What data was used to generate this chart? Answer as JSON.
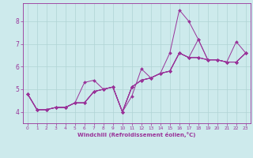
{
  "title": "",
  "xlabel": "Windchill (Refroidissement éolien,°C)",
  "ylabel": "",
  "bg_color": "#cdeaec",
  "line_color": "#993399",
  "grid_color": "#b0d4d4",
  "xlim": [
    -0.5,
    23.5
  ],
  "ylim": [
    3.5,
    8.8
  ],
  "yticks": [
    4,
    5,
    6,
    7,
    8
  ],
  "xticks": [
    0,
    1,
    2,
    3,
    4,
    5,
    6,
    7,
    8,
    9,
    10,
    11,
    12,
    13,
    14,
    15,
    16,
    17,
    18,
    19,
    20,
    21,
    22,
    23
  ],
  "series": [
    [
      4.8,
      4.1,
      4.1,
      4.2,
      4.2,
      4.4,
      5.3,
      5.4,
      5.0,
      5.1,
      4.0,
      4.7,
      5.9,
      5.5,
      5.7,
      6.6,
      8.5,
      8.0,
      7.2,
      6.3,
      6.3,
      6.2,
      7.1,
      6.6
    ],
    [
      4.8,
      4.1,
      4.1,
      4.2,
      4.2,
      4.4,
      4.4,
      4.9,
      5.0,
      5.1,
      4.0,
      5.1,
      5.4,
      5.5,
      5.7,
      5.8,
      6.6,
      6.4,
      7.2,
      6.3,
      6.3,
      6.2,
      6.2,
      6.6
    ],
    [
      4.8,
      4.1,
      4.1,
      4.2,
      4.2,
      4.4,
      4.4,
      4.9,
      5.0,
      5.1,
      4.0,
      5.1,
      5.4,
      5.5,
      5.7,
      5.8,
      6.6,
      6.4,
      6.4,
      6.3,
      6.3,
      6.2,
      6.2,
      6.6
    ],
    [
      4.8,
      4.1,
      4.1,
      4.2,
      4.2,
      4.4,
      4.4,
      4.9,
      5.0,
      5.1,
      4.0,
      5.1,
      5.4,
      5.5,
      5.7,
      5.8,
      6.6,
      6.4,
      6.4,
      6.3,
      6.3,
      6.2,
      6.2,
      6.6
    ],
    [
      4.8,
      4.1,
      4.1,
      4.2,
      4.2,
      4.4,
      4.4,
      4.9,
      5.0,
      5.1,
      4.0,
      5.1,
      5.4,
      5.5,
      5.7,
      5.8,
      6.6,
      6.4,
      6.4,
      6.3,
      6.3,
      6.2,
      6.2,
      6.6
    ]
  ],
  "marker": "D",
  "markersize": 2.0,
  "linewidth": 0.7,
  "xlabel_fontsize": 5.0,
  "tick_fontsize_x": 4.2,
  "tick_fontsize_y": 5.5
}
